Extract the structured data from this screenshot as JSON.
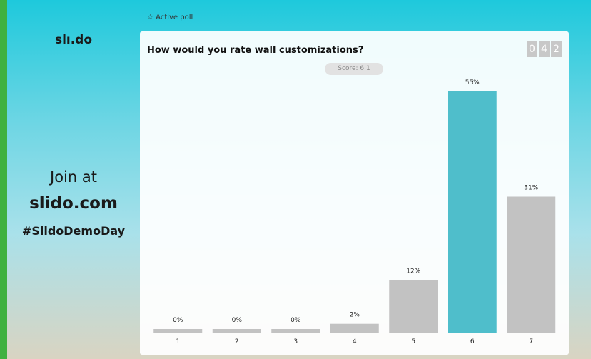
{
  "sidebar": {
    "logo": "slı.do",
    "join": "Join at",
    "url": "slido.com",
    "hashtag": "#SlidoDemoDay"
  },
  "header": {
    "status": "Active poll",
    "question": "How would you rate wall customizations?",
    "score": "Score: 6.1",
    "counter": [
      "0",
      "4",
      "2"
    ]
  },
  "chart_data": {
    "type": "bar",
    "categories": [
      "1",
      "2",
      "3",
      "4",
      "5",
      "6",
      "7"
    ],
    "values": [
      0,
      0,
      0,
      2,
      12,
      55,
      31
    ],
    "value_labels": [
      "0%",
      "0%",
      "0%",
      "2%",
      "12%",
      "55%",
      "31%"
    ],
    "colors": [
      "#c2c2c2",
      "#c2c2c2",
      "#c2c2c2",
      "#c2c2c2",
      "#c2c2c2",
      "#4fbecb",
      "#c2c2c2"
    ]
  }
}
